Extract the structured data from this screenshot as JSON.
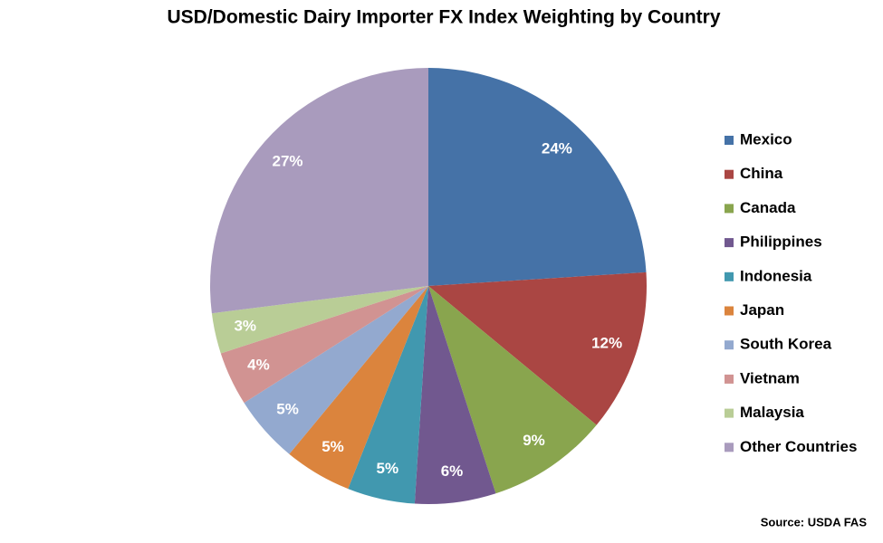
{
  "chart_data": {
    "type": "pie",
    "title": "USD/Domestic Dairy Importer FX Index Weighting by Country",
    "categories": [
      "Mexico",
      "China",
      "Canada",
      "Philippines",
      "Indonesia",
      "Japan",
      "South Korea",
      "Vietnam",
      "Malaysia",
      "Other Countries"
    ],
    "values": [
      24,
      12,
      9,
      6,
      5,
      5,
      5,
      4,
      3,
      27
    ],
    "value_labels": [
      "24%",
      "12%",
      "9%",
      "6%",
      "5%",
      "5%",
      "5%",
      "4%",
      "3%",
      "27%"
    ],
    "colors": [
      "#4572a7",
      "#aa4643",
      "#89a54e",
      "#71588f",
      "#4198af",
      "#db843d",
      "#93a9cf",
      "#d19392",
      "#b9cd96",
      "#a99bbd"
    ],
    "legend": "right",
    "source": "Source: USDA FAS"
  }
}
